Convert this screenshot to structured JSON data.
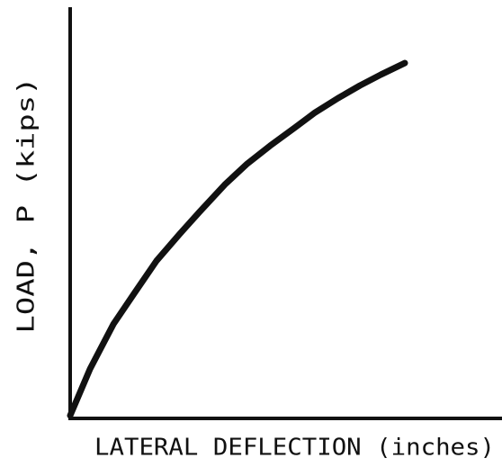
{
  "chart_data": {
    "type": "line",
    "x_label": "LATERAL DEFLECTION (inches)",
    "y_label": "LOAD, P (kips)",
    "xlim": [
      0,
      1
    ],
    "ylim": [
      0,
      1
    ],
    "series": [
      {
        "color": "#111111",
        "x": [
          0,
          0.046,
          0.1,
          0.15,
          0.2,
          0.254,
          0.3,
          0.358,
          0.41,
          0.463,
          0.52,
          0.567,
          0.62,
          0.671,
          0.72,
          0.775
        ],
        "values": [
          0.007,
          0.121,
          0.23,
          0.308,
          0.385,
          0.451,
          0.505,
          0.571,
          0.622,
          0.666,
          0.71,
          0.747,
          0.782,
          0.813,
          0.84,
          0.868
        ]
      }
    ]
  }
}
